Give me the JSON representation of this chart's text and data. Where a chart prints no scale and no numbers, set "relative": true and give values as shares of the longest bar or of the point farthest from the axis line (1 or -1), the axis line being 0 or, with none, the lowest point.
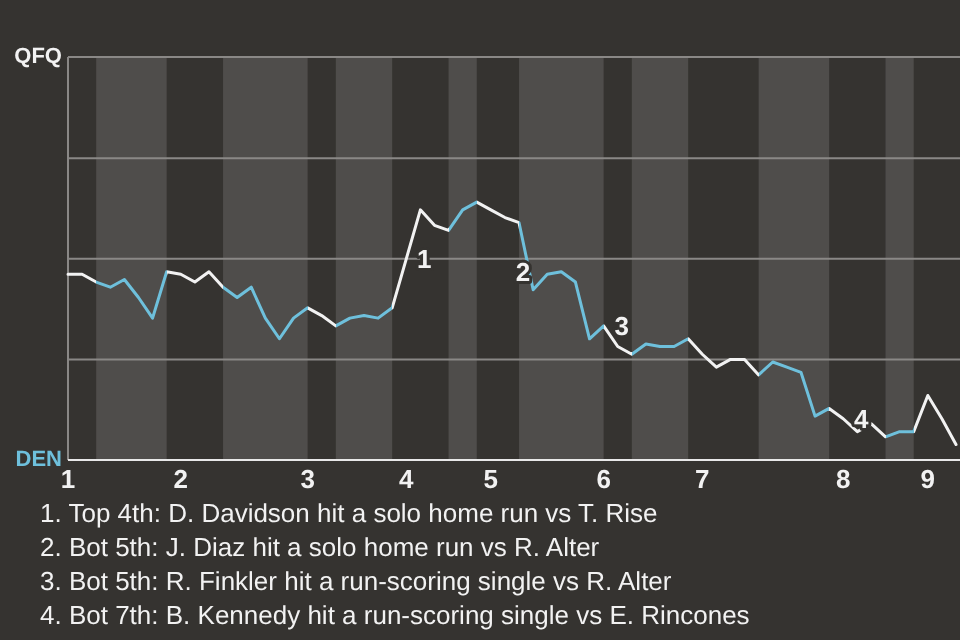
{
  "chart_data": {
    "type": "line",
    "relative": true,
    "categories": [
      "1",
      null,
      null,
      null,
      null,
      null,
      null,
      null,
      "2",
      null,
      null,
      null,
      null,
      null,
      null,
      null,
      null,
      "3",
      null,
      null,
      null,
      null,
      null,
      null,
      "4",
      null,
      null,
      null,
      null,
      null,
      "5",
      null,
      null,
      null,
      null,
      null,
      null,
      null,
      "6",
      null,
      null,
      null,
      null,
      null,
      null,
      "7",
      null,
      null,
      null,
      null,
      null,
      null,
      null,
      null,
      null,
      "8",
      null,
      null,
      null,
      null,
      null,
      "9",
      null,
      null
    ],
    "series": [
      {
        "color": "#f2f2f2",
        "values": [
          0.72,
          0.72,
          0.69,
          0.67,
          0.7,
          0.63,
          0.55,
          0.73,
          0.72,
          0.69,
          0.73,
          0.67,
          0.63,
          0.67,
          0.55,
          0.47,
          0.55,
          0.59,
          0.56,
          0.52,
          0.55,
          0.56,
          0.55,
          0.59,
          0.78,
          0.97,
          0.91,
          0.89,
          0.97,
          1,
          0.97,
          0.94,
          0.92,
          0.66,
          0.72,
          0.73,
          0.69,
          0.47,
          0.52,
          0.44,
          0.41,
          0.45,
          0.44,
          0.44,
          0.47,
          0.41,
          0.36,
          0.39,
          0.39,
          0.33,
          0.38,
          0.36,
          0.34,
          0.17,
          0.2,
          0.16,
          0.11,
          0.14,
          0.09,
          0.11,
          0.11,
          0.25,
          0.16,
          0.06
        ],
        "colors": [
          null,
          null,
          "#6ec0dc",
          "#6ec0dc",
          "#6ec0dc",
          "#6ec0dc",
          "#6ec0dc",
          null,
          null,
          null,
          null,
          "#6ec0dc",
          "#6ec0dc",
          "#6ec0dc",
          "#6ec0dc",
          "#6ec0dc",
          "#6ec0dc",
          null,
          null,
          "#6ec0dc",
          "#6ec0dc",
          "#6ec0dc",
          "#6ec0dc",
          null,
          null,
          null,
          null,
          "#6ec0dc",
          "#6ec0dc",
          null,
          null,
          null,
          "#6ec0dc",
          "#6ec0dc",
          "#6ec0dc",
          "#6ec0dc",
          "#6ec0dc",
          "#6ec0dc",
          null,
          null,
          "#6ec0dc",
          "#6ec0dc",
          "#6ec0dc",
          "#6ec0dc",
          null,
          null,
          null,
          null,
          null,
          "#6ec0dc",
          "#6ec0dc",
          "#6ec0dc",
          "#6ec0dc",
          "#6ec0dc",
          null,
          null,
          null,
          null,
          "#6ec0dc",
          "#6ec0dc",
          null,
          null,
          null,
          null
        ]
      }
    ],
    "marker": "none",
    "line_style": "solid",
    "ref_lines": [
      {
        "axis": "y",
        "value": 0.39,
        "color": "#8a8886"
      },
      {
        "axis": "y",
        "value": 0.78,
        "color": "#8a8886"
      },
      {
        "axis": "y",
        "value": 1.17,
        "color": "#8a8886"
      }
    ],
    "annotations": [
      "QFQ",
      "DEN",
      {
        "text": "1",
        "x": "4",
        "y": 0.78
      },
      {
        "text": "2",
        "y": 0.73
      },
      {
        "text": "3",
        "x": "6",
        "y": 0.52
      },
      {
        "text": "4",
        "x": "8",
        "y": 0.16
      },
      "1. Top 4th: D. Davidson hit a solo home run vs T. Rise",
      "2. Bot 5th: J. Diaz hit a solo home run vs R. Alter",
      "3. Bot 5th: R. Finkler hit a run-scoring single vs R. Alter",
      "4. Bot 7th: B. Kennedy hit a run-scoring single vs E. Rincones"
    ]
  }
}
